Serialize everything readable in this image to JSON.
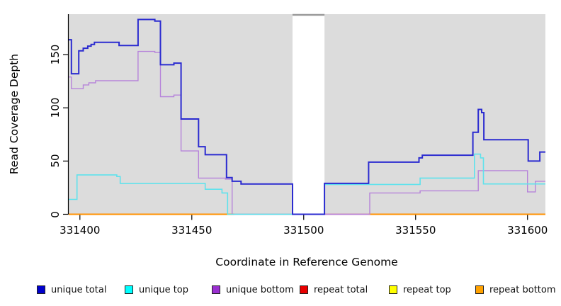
{
  "chart_data": {
    "type": "step-line",
    "title": "",
    "xlabel": "Coordinate in Reference Genome",
    "ylabel": "Read Coverage Depth",
    "xlim": [
      331395,
      331608
    ],
    "ylim": [
      0,
      188
    ],
    "x_ticks": [
      331400,
      331450,
      331500,
      331550,
      331600
    ],
    "y_ticks": [
      0,
      50,
      100,
      150
    ],
    "grid": "off",
    "legend_position": "bottom",
    "panel_bg": "#dcdcdc",
    "axis_color": "#000000",
    "masked_region": {
      "from": 331495,
      "to": 331509.3,
      "color": "#ffffff",
      "top_border": "#9a9a9a"
    },
    "series": [
      {
        "name": "unique total",
        "color": "#2b2bd0",
        "legend_color": "#0000cc",
        "width": 2,
        "points": [
          [
            331395,
            164
          ],
          [
            331396.2,
            132
          ],
          [
            331399.5,
            153.5
          ],
          [
            331401.5,
            156
          ],
          [
            331403.5,
            158
          ],
          [
            331405,
            159.5
          ],
          [
            331406.5,
            161.5
          ],
          [
            331417.5,
            158.5
          ],
          [
            331426,
            183
          ],
          [
            331433.5,
            181.5
          ],
          [
            331436,
            140.5
          ],
          [
            331442,
            142
          ],
          [
            331445.2,
            89.5
          ],
          [
            331453,
            63.5
          ],
          [
            331456,
            56
          ],
          [
            331465.5,
            34.5
          ],
          [
            331468,
            31
          ],
          [
            331472,
            28.5
          ],
          [
            331495,
            0
          ],
          [
            331509.3,
            29
          ],
          [
            331529,
            49
          ],
          [
            331551.5,
            53
          ],
          [
            331553,
            55.5
          ],
          [
            331575.6,
            77
          ],
          [
            331578,
            98.5
          ],
          [
            331579.5,
            95.5
          ],
          [
            331580.5,
            70
          ],
          [
            331600.3,
            50
          ],
          [
            331605.5,
            58.5
          ]
        ]
      },
      {
        "name": "unique top",
        "color": "#5fe2ec",
        "legend_color": "#00ffff",
        "width": 1.6,
        "points": [
          [
            331395,
            14
          ],
          [
            331398.7,
            37
          ],
          [
            331416.5,
            35.5
          ],
          [
            331418,
            29
          ],
          [
            331456,
            23.5
          ],
          [
            331463.5,
            20
          ],
          [
            331466,
            0
          ],
          [
            331509.3,
            28
          ],
          [
            331552,
            34
          ],
          [
            331576.3,
            56.5
          ],
          [
            331579,
            53
          ],
          [
            331580.3,
            28.5
          ]
        ]
      },
      {
        "name": "unique bottom",
        "color": "#b683da",
        "legend_color": "#9a2fd0",
        "width": 1.4,
        "points": [
          [
            331395,
            129
          ],
          [
            331396.2,
            118
          ],
          [
            331401.5,
            121.5
          ],
          [
            331404,
            123.5
          ],
          [
            331407,
            125.5
          ],
          [
            331426,
            153
          ],
          [
            331433.5,
            152
          ],
          [
            331436,
            110.5
          ],
          [
            331442,
            112
          ],
          [
            331445.2,
            59.5
          ],
          [
            331453,
            34
          ],
          [
            331465,
            33
          ],
          [
            331468,
            0
          ],
          [
            331529.5,
            20
          ],
          [
            331552,
            22
          ],
          [
            331578,
            41
          ],
          [
            331600,
            21
          ],
          [
            331603.5,
            31
          ]
        ]
      },
      {
        "name": "repeat total",
        "color": "#e80000",
        "legend_color": "#e80000",
        "width": 1.5,
        "points": [
          [
            331395,
            0
          ]
        ]
      },
      {
        "name": "repeat top",
        "color": "#ffff00",
        "legend_color": "#ffff00",
        "width": 1.5,
        "points": [
          [
            331395,
            0
          ]
        ]
      },
      {
        "name": "repeat bottom",
        "color": "#ff9100",
        "legend_color": "#ffa100",
        "width": 2,
        "points": [
          [
            331395,
            0
          ]
        ]
      }
    ],
    "zero_line_segments": [
      {
        "from": 331395,
        "to": 331469,
        "color": "#ff9100",
        "width": 2
      },
      {
        "from": 331469,
        "to": 331495,
        "color": "#8fd28f",
        "width": 1.6
      },
      {
        "from": 331509.3,
        "to": 331529,
        "color": "#cf3a5f",
        "width": 1.6
      },
      {
        "from": 331529,
        "to": 331608,
        "color": "#ff9100",
        "width": 2
      }
    ]
  }
}
